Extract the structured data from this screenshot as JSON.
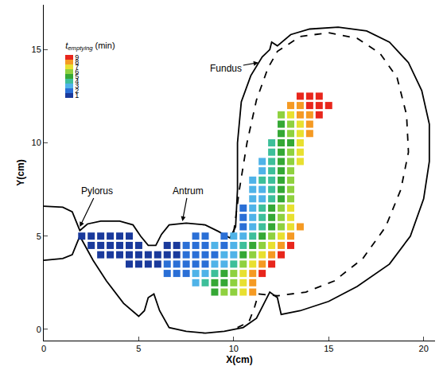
{
  "chart_data": {
    "type": "scatter",
    "marker": "square",
    "grid": false,
    "xlabel": "X(cm)",
    "ylabel": "Y(cm)",
    "xlim": [
      0,
      20.6
    ],
    "ylim": [
      -0.6,
      17.4
    ],
    "xticks": [
      0,
      5,
      10,
      15,
      20
    ],
    "yticks": [
      0,
      5,
      10,
      15
    ],
    "colorbar": {
      "label": {
        "symbol": "t",
        "subscript": "emptying",
        "unit": "(min)"
      },
      "range": [
        0.5,
        9.5
      ],
      "ticks": [
        1,
        2,
        3,
        4,
        5,
        6,
        7,
        8,
        9
      ],
      "colors": [
        "#1a3a9c",
        "#2a6fd6",
        "#4fb3e8",
        "#3dbf9a",
        "#35a835",
        "#8fd13f",
        "#e8e030",
        "#f59a23",
        "#e8261c"
      ]
    },
    "outline": [
      {
        "line_style": "solid",
        "x": [
          0,
          1.0,
          1.5,
          1.9,
          2.3,
          3,
          4,
          4.7,
          5.1,
          5.5,
          5.9,
          6.2,
          6.6,
          7.5,
          8.5,
          9.2,
          9.8,
          10.1,
          10.2,
          10.2,
          10.4,
          10.9,
          11.5,
          11.9,
          12.0,
          12.3,
          13,
          14,
          15.5,
          17,
          18.2,
          19.2,
          19.9,
          20.3,
          20.3,
          20,
          19.3,
          18.2,
          16.5,
          15,
          13.5,
          12.5,
          12.3,
          11.9,
          11.6,
          11.2,
          10.5,
          9.5,
          8.5,
          7.5,
          6.6,
          6.1,
          5.8,
          5.5,
          5.3,
          5.0,
          4.2,
          3.3,
          2.6,
          2.1,
          1.9,
          1.5,
          1.0,
          0
        ],
        "y": [
          6.6,
          6.55,
          6.3,
          5.3,
          5.65,
          5.8,
          5.8,
          5.6,
          5.0,
          4.5,
          4.5,
          5.1,
          5.6,
          5.7,
          5.6,
          5.25,
          4.9,
          5.5,
          7.5,
          10,
          12.2,
          13.6,
          14.6,
          15.0,
          15.4,
          15.2,
          15.8,
          16.1,
          16.2,
          16.0,
          15.4,
          14.3,
          12.8,
          11,
          9,
          7,
          5,
          3.5,
          2.3,
          1.5,
          1.0,
          0.8,
          1.7,
          2.0,
          1.4,
          0.6,
          0.1,
          -0.1,
          -0.2,
          -0.1,
          0.1,
          1.0,
          1.9,
          1.7,
          1.0,
          0.7,
          1.4,
          2.6,
          3.7,
          4.6,
          5.0,
          4.0,
          3.8,
          3.7
        ]
      },
      {
        "line_style": "dashed",
        "x": [
          10,
          10.3,
          10.7,
          11.2,
          11.8,
          12.3,
          13.5,
          15,
          16.5,
          17.7,
          18.6,
          19.1,
          19.2,
          18.8,
          18,
          16.8,
          15.3,
          13.8,
          12.3,
          11.3,
          11.1,
          10.8,
          10.2
        ],
        "y": [
          5.2,
          7.5,
          10,
          12.3,
          14.0,
          14.9,
          15.7,
          15.9,
          15.6,
          14.8,
          13.5,
          11.5,
          9.5,
          7.5,
          5.5,
          3.8,
          2.6,
          2.0,
          1.8,
          1.9,
          1.2,
          0.4,
          0.1
        ]
      }
    ],
    "points": [
      {
        "y": 5.0,
        "x": [
          2,
          2.5,
          3,
          3.5,
          4,
          4.5,
          8,
          8.5,
          9.5,
          10,
          10.5,
          11,
          11.5,
          12,
          12.5,
          13
        ],
        "values": [
          1,
          1,
          1,
          1,
          1,
          1,
          2,
          2,
          2,
          3,
          3,
          4,
          5,
          6,
          7,
          8
        ]
      },
      {
        "y": 4.5,
        "x": [
          2.5,
          3,
          3.5,
          4,
          4.5,
          5,
          6.5,
          7,
          7.5,
          8,
          8.5,
          9,
          9.5,
          10,
          10.5,
          11,
          11.5,
          12,
          12.5,
          13
        ],
        "values": [
          1,
          1,
          1,
          1,
          1,
          1,
          1,
          1,
          2,
          2,
          2,
          3,
          2,
          3,
          4,
          5,
          6,
          7,
          8,
          9
        ]
      },
      {
        "y": 4.0,
        "x": [
          3,
          3.5,
          4,
          4.5,
          5,
          5.5,
          6,
          6.5,
          7,
          7.5,
          8,
          8.5,
          9,
          9.5,
          10,
          10.5,
          11,
          11.5,
          12,
          12.5
        ],
        "values": [
          1,
          1,
          1,
          1,
          1,
          1,
          1,
          1,
          1,
          2,
          2,
          2,
          2,
          3,
          3,
          5,
          6,
          7,
          8,
          9
        ]
      },
      {
        "y": 3.5,
        "x": [
          4.5,
          5,
          5.5,
          6,
          6.5,
          7,
          7.5,
          8,
          8.5,
          9,
          9.5,
          10,
          10.5,
          11,
          11.5,
          12
        ],
        "values": [
          1,
          1,
          1,
          1,
          2,
          2,
          2,
          2,
          2,
          3,
          3,
          4,
          6,
          7,
          8,
          9
        ]
      },
      {
        "y": 3.0,
        "x": [
          6.5,
          7,
          7.5,
          8,
          8.5,
          9,
          9.5,
          10,
          10.5,
          11,
          11.5
        ],
        "values": [
          2,
          2,
          2,
          3,
          3,
          4,
          5,
          6,
          7,
          8,
          9
        ]
      },
      {
        "y": 2.5,
        "x": [
          8,
          8.5,
          9,
          9.5,
          10,
          10.5,
          11
        ],
        "values": [
          3,
          4,
          5,
          5,
          6,
          7,
          8
        ]
      },
      {
        "y": 2.0,
        "x": [
          9,
          9.5,
          10,
          10.5,
          11
        ],
        "values": [
          5,
          6,
          6,
          7,
          8
        ]
      },
      {
        "y": 5.5,
        "x": [
          10.5,
          11,
          11.5,
          12,
          12.5,
          13,
          13.5
        ],
        "values": [
          2,
          3,
          4,
          5,
          6,
          7,
          8
        ]
      },
      {
        "y": 6.0,
        "x": [
          10.5,
          11,
          11.5,
          12,
          12.5,
          13
        ],
        "values": [
          2,
          3,
          4,
          5,
          6,
          7
        ]
      },
      {
        "y": 6.5,
        "x": [
          10.5,
          11,
          11.5,
          12,
          12.5,
          13
        ],
        "values": [
          2,
          3,
          4,
          5,
          6,
          7
        ]
      },
      {
        "y": 7.0,
        "x": [
          11,
          11.5,
          12,
          12.5,
          13
        ],
        "values": [
          3,
          3,
          4,
          5,
          6
        ]
      },
      {
        "y": 7.5,
        "x": [
          11,
          11.5,
          12,
          12.5,
          13
        ],
        "values": [
          3,
          3,
          4,
          5,
          6
        ]
      },
      {
        "y": 8.0,
        "x": [
          11,
          11.5,
          12,
          12.5,
          13
        ],
        "values": [
          3,
          4,
          4,
          5,
          6
        ]
      },
      {
        "y": 8.5,
        "x": [
          11.5,
          12,
          12.5,
          13
        ],
        "values": [
          3,
          4,
          5,
          6
        ]
      },
      {
        "y": 9.0,
        "x": [
          11.5,
          12,
          12.5,
          13,
          13.5
        ],
        "values": [
          3,
          4,
          5,
          6,
          7
        ]
      },
      {
        "y": 9.5,
        "x": [
          12,
          12.5,
          13,
          13.5
        ],
        "values": [
          4,
          5,
          6,
          7
        ]
      },
      {
        "y": 10.0,
        "x": [
          12,
          12.5,
          13,
          13.5
        ],
        "values": [
          4,
          5,
          5,
          7
        ]
      },
      {
        "y": 10.5,
        "x": [
          12.5,
          13,
          13.5,
          14
        ],
        "values": [
          5,
          6,
          7,
          8
        ]
      },
      {
        "y": 11.0,
        "x": [
          12.5,
          13,
          13.5,
          14
        ],
        "values": [
          5,
          6,
          7,
          8
        ]
      },
      {
        "y": 11.5,
        "x": [
          12.5,
          13,
          13.5,
          14,
          14.5
        ],
        "values": [
          6,
          7,
          8,
          8,
          9
        ]
      },
      {
        "y": 12.0,
        "x": [
          13,
          13.5,
          14,
          14.5,
          15
        ],
        "values": [
          8,
          8,
          9,
          9,
          9
        ]
      },
      {
        "y": 12.5,
        "x": [
          13.5,
          14,
          14.5
        ],
        "values": [
          9,
          9,
          9
        ]
      }
    ],
    "annotations": [
      {
        "text": "Pylorus",
        "x": 1.9,
        "y": 5.5,
        "label_x": 2.8,
        "label_y": 7.4
      },
      {
        "text": "Antrum",
        "x": 7.3,
        "y": 5.8,
        "label_x": 7.6,
        "label_y": 7.4
      },
      {
        "text": "Fundus",
        "x": 11.3,
        "y": 14.3,
        "label_x": 9.6,
        "label_y": 14.0
      }
    ]
  }
}
